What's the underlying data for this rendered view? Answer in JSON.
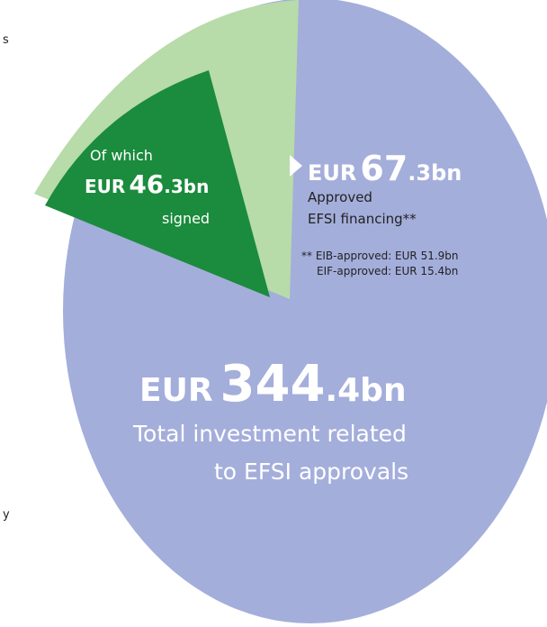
{
  "cropped_fragments": [
    "s",
    "y"
  ],
  "signed": {
    "intro": "Of which",
    "currency": "EUR",
    "whole": "46",
    "decimal": ".3bn",
    "caption": "signed"
  },
  "approved": {
    "currency": "EUR",
    "whole": "67",
    "decimal": ".3bn",
    "line1": "Approved",
    "line2": "EFSI financing**",
    "footnotes": [
      "** EIB-approved: EUR 51.9bn",
      "EIF-approved: EUR 15.4bn"
    ]
  },
  "total": {
    "currency": "EUR",
    "whole": "344",
    "decimal": ".4bn",
    "line1": "Total investment related",
    "line2": "to EFSI approvals"
  }
}
